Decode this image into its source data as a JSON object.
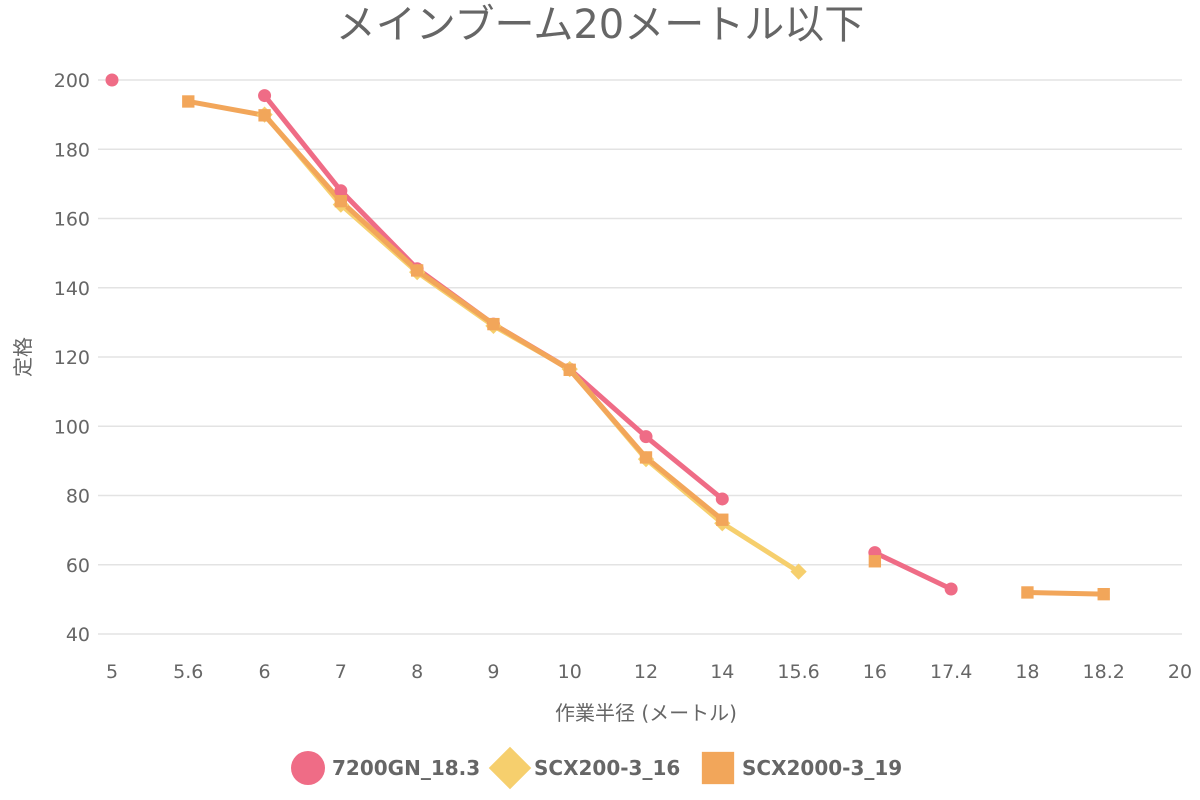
{
  "chart_data": {
    "type": "line",
    "title": "メインブーム20メートル以下",
    "xlabel": "作業半径 (メートル)",
    "ylabel": "定格",
    "categories": [
      "5",
      "5.6",
      "6",
      "7",
      "8",
      "9",
      "10",
      "12",
      "14",
      "15.6",
      "16",
      "17.4",
      "18",
      "18.2",
      "20"
    ],
    "ylim": [
      40,
      200
    ],
    "yticks": [
      40,
      60,
      80,
      100,
      120,
      140,
      160,
      180,
      200
    ],
    "grid": true,
    "legend_position": "bottom",
    "series": [
      {
        "name": "7200GN_18.3",
        "color": "#ef6c86",
        "marker": "circle",
        "values": [
          200,
          null,
          195.5,
          168,
          145.5,
          129.5,
          116.5,
          97,
          79,
          null,
          63.5,
          53,
          null,
          null,
          null
        ]
      },
      {
        "name": "SCX200-3_16",
        "color": "#f6cf6d",
        "marker": "diamond",
        "values": [
          null,
          null,
          190,
          164,
          144.5,
          129,
          116.5,
          90.5,
          72,
          58,
          null,
          null,
          null,
          null,
          null
        ]
      },
      {
        "name": "SCX2000-3_19",
        "color": "#f2a65a",
        "marker": "square",
        "values": [
          null,
          193.8,
          189.8,
          165,
          145,
          129.5,
          116.3,
          91,
          73,
          null,
          61,
          null,
          52,
          51.5,
          null
        ]
      }
    ]
  }
}
